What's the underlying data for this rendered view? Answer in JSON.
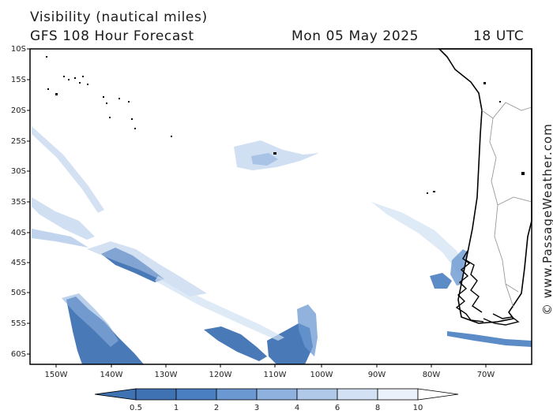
{
  "header": {
    "title": "Visibility (nautical miles)",
    "model": "GFS 108 Hour Forecast",
    "date": "Mon 05 May 2025",
    "time": "18 UTC"
  },
  "credit": "© www.PassageWeather.com",
  "axes": {
    "lat_labels": [
      "10S",
      "15S",
      "20S",
      "25S",
      "30S",
      "35S",
      "40S",
      "45S",
      "50S",
      "55S",
      "60S"
    ],
    "lon_labels": [
      "150W",
      "140W",
      "130W",
      "120W",
      "110W",
      "100W",
      "90W",
      "80W",
      "70W"
    ]
  },
  "colorbar": {
    "labels": [
      "0.5",
      "1",
      "2",
      "3",
      "4",
      "6",
      "8",
      "10"
    ],
    "colors": [
      "#3f72b3",
      "#4a7fc1",
      "#6b98d1",
      "#8eb1de",
      "#b0c9e9",
      "#d2e1f3",
      "#eaf1fa",
      "#ffffff"
    ]
  },
  "map": {
    "land_color": "#ffffff",
    "coast_color": "#000000",
    "border_color": "#999999",
    "haze_color": "#4a7fc1"
  }
}
